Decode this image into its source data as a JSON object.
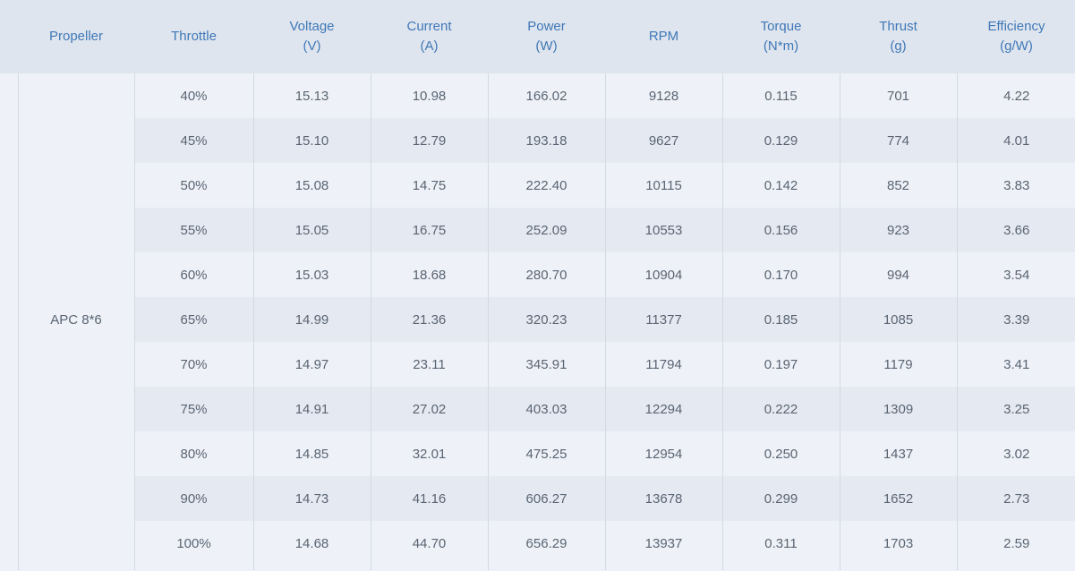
{
  "table": {
    "headers": [
      {
        "line1": "Propeller",
        "line2": ""
      },
      {
        "line1": "Throttle",
        "line2": ""
      },
      {
        "line1": "Voltage",
        "line2": "(V)"
      },
      {
        "line1": "Current",
        "line2": "(A)"
      },
      {
        "line1": "Power",
        "line2": "(W)"
      },
      {
        "line1": "RPM",
        "line2": ""
      },
      {
        "line1": "Torque",
        "line2": "(N*m)"
      },
      {
        "line1": "Thrust",
        "line2": "(g)"
      },
      {
        "line1": "Efficiency",
        "line2": "(g/W)"
      }
    ],
    "propeller": "APC 8*6",
    "rows": [
      [
        "40%",
        "15.13",
        "10.98",
        "166.02",
        "9128",
        "0.115",
        "701",
        "4.22"
      ],
      [
        "45%",
        "15.10",
        "12.79",
        "193.18",
        "9627",
        "0.129",
        "774",
        "4.01"
      ],
      [
        "50%",
        "15.08",
        "14.75",
        "222.40",
        "10115",
        "0.142",
        "852",
        "3.83"
      ],
      [
        "55%",
        "15.05",
        "16.75",
        "252.09",
        "10553",
        "0.156",
        "923",
        "3.66"
      ],
      [
        "60%",
        "15.03",
        "18.68",
        "280.70",
        "10904",
        "0.170",
        "994",
        "3.54"
      ],
      [
        "65%",
        "14.99",
        "21.36",
        "320.23",
        "11377",
        "0.185",
        "1085",
        "3.39"
      ],
      [
        "70%",
        "14.97",
        "23.11",
        "345.91",
        "11794",
        "0.197",
        "1179",
        "3.41"
      ],
      [
        "75%",
        "14.91",
        "27.02",
        "403.03",
        "12294",
        "0.222",
        "1309",
        "3.25"
      ],
      [
        "80%",
        "14.85",
        "32.01",
        "475.25",
        "12954",
        "0.250",
        "1437",
        "3.02"
      ],
      [
        "90%",
        "14.73",
        "41.16",
        "606.27",
        "13678",
        "0.299",
        "1652",
        "2.73"
      ],
      [
        "100%",
        "14.68",
        "44.70",
        "656.29",
        "13937",
        "0.311",
        "1703",
        "2.59"
      ]
    ]
  }
}
